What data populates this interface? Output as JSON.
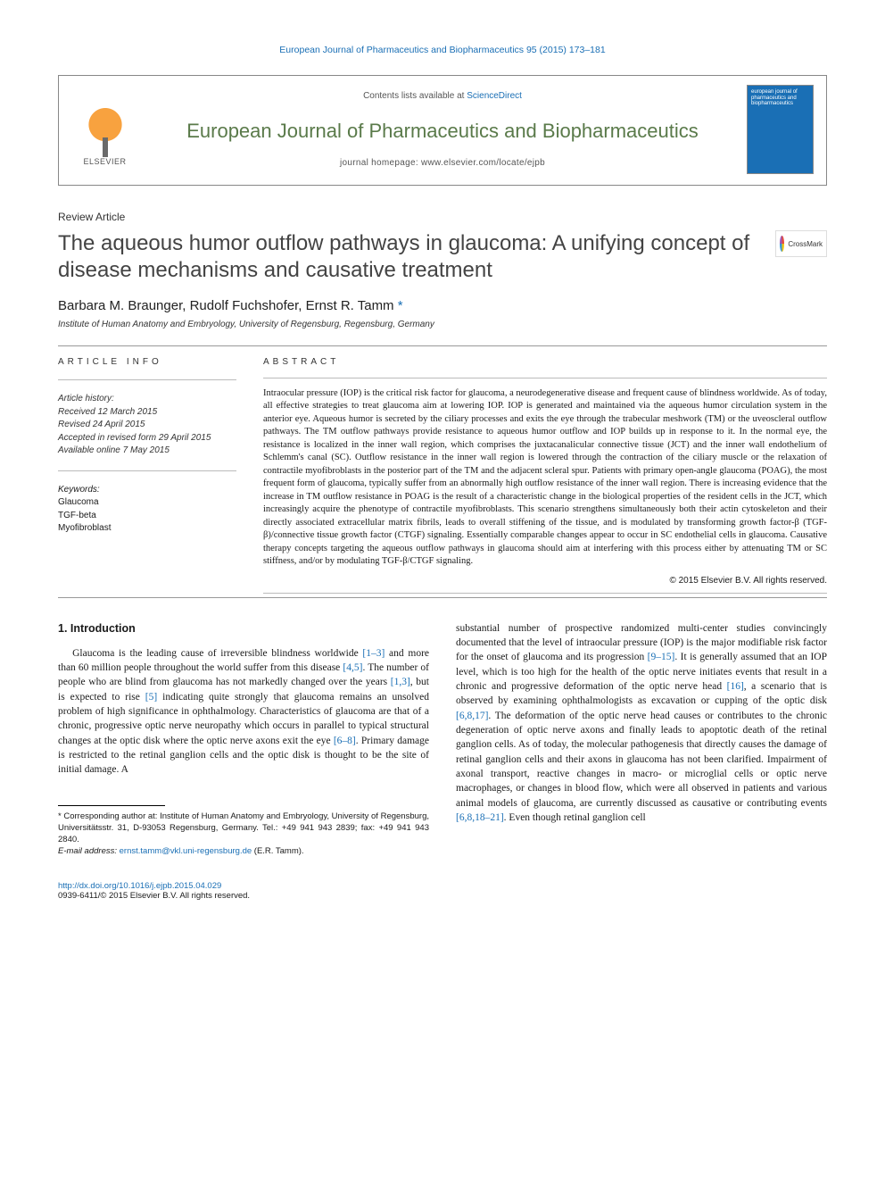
{
  "running_head": "European Journal of Pharmaceutics and Biopharmaceutics 95 (2015) 173–181",
  "masthead": {
    "contents_prefix": "Contents lists available at ",
    "contents_link": "ScienceDirect",
    "journal_name": "European Journal of Pharmaceutics and Biopharmaceutics",
    "homepage_label": "journal homepage: www.elsevier.com/locate/ejpb",
    "publisher_name": "ELSEVIER",
    "cover_text": "european journal of pharmaceutics and biopharmaceutics"
  },
  "article_type": "Review Article",
  "title": "The aqueous humor outflow pathways in glaucoma: A unifying concept of disease mechanisms and causative treatment",
  "crossmark_label": "CrossMark",
  "authors_line": "Barbara M. Braunger, Rudolf Fuchshofer, Ernst R. Tamm ",
  "corr_marker": "*",
  "affiliation": "Institute of Human Anatomy and Embryology, University of Regensburg, Regensburg, Germany",
  "info": {
    "heading": "ARTICLE INFO",
    "history_heading": "Article history:",
    "history": [
      "Received 12 March 2015",
      "Revised 24 April 2015",
      "Accepted in revised form 29 April 2015",
      "Available online 7 May 2015"
    ],
    "keywords_heading": "Keywords:",
    "keywords": [
      "Glaucoma",
      "TGF-beta",
      "Myofibroblast"
    ]
  },
  "abstract": {
    "heading": "ABSTRACT",
    "text": "Intraocular pressure (IOP) is the critical risk factor for glaucoma, a neurodegenerative disease and frequent cause of blindness worldwide. As of today, all effective strategies to treat glaucoma aim at lowering IOP. IOP is generated and maintained via the aqueous humor circulation system in the anterior eye. Aqueous humor is secreted by the ciliary processes and exits the eye through the trabecular meshwork (TM) or the uveoscleral outflow pathways. The TM outflow pathways provide resistance to aqueous humor outflow and IOP builds up in response to it. In the normal eye, the resistance is localized in the inner wall region, which comprises the juxtacanalicular connective tissue (JCT) and the inner wall endothelium of Schlemm's canal (SC). Outflow resistance in the inner wall region is lowered through the contraction of the ciliary muscle or the relaxation of contractile myofibroblasts in the posterior part of the TM and the adjacent scleral spur. Patients with primary open-angle glaucoma (POAG), the most frequent form of glaucoma, typically suffer from an abnormally high outflow resistance of the inner wall region. There is increasing evidence that the increase in TM outflow resistance in POAG is the result of a characteristic change in the biological properties of the resident cells in the JCT, which increasingly acquire the phenotype of contractile myofibroblasts. This scenario strengthens simultaneously both their actin cytoskeleton and their directly associated extracellular matrix fibrils, leads to overall stiffening of the tissue, and is modulated by transforming growth factor-β (TGF-β)/connective tissue growth factor (CTGF) signaling. Essentially comparable changes appear to occur in SC endothelial cells in glaucoma. Causative therapy concepts targeting the aqueous outflow pathways in glaucoma should aim at interfering with this process either by attenuating TM or SC stiffness, and/or by modulating TGF-β/CTGF signaling.",
    "copyright": "© 2015 Elsevier B.V. All rights reserved."
  },
  "body": {
    "section_heading": "1. Introduction",
    "col1_text": "Glaucoma is the leading cause of irreversible blindness worldwide [1–3] and more than 60 million people throughout the world suffer from this disease [4,5]. The number of people who are blind from glaucoma has not markedly changed over the years [1,3], but is expected to rise [5] indicating quite strongly that glaucoma remains an unsolved problem of high significance in ophthalmology. Characteristics of glaucoma are that of a chronic, progressive optic nerve neuropathy which occurs in parallel to typical structural changes at the optic disk where the optic nerve axons exit the eye [6–8]. Primary damage is restricted to the retinal ganglion cells and the optic disk is thought to be the site of initial damage. A",
    "col2_text": "substantial number of prospective randomized multi-center studies convincingly documented that the level of intraocular pressure (IOP) is the major modifiable risk factor for the onset of glaucoma and its progression [9–15]. It is generally assumed that an IOP level, which is too high for the health of the optic nerve initiates events that result in a chronic and progressive deformation of the optic nerve head [16], a scenario that is observed by examining ophthalmologists as excavation or cupping of the optic disk [6,8,17]. The deformation of the optic nerve head causes or contributes to the chronic degeneration of optic nerve axons and finally leads to apoptotic death of the retinal ganglion cells. As of today, the molecular pathogenesis that directly causes the damage of retinal ganglion cells and their axons in glaucoma has not been clarified. Impairment of axonal transport, reactive changes in macro- or microglial cells or optic nerve macrophages, or changes in blood flow, which were all observed in patients and various animal models of glaucoma, are currently discussed as causative or contributing events [6,8,18–21]. Even though retinal ganglion cell"
  },
  "footnote": {
    "corr_text": "* Corresponding author at: Institute of Human Anatomy and Embryology, University of Regensburg, Universitätsstr. 31, D-93053 Regensburg, Germany. Tel.: +49 941 943 2839; fax: +49 941 943 2840.",
    "email_label": "E-mail address: ",
    "email": "ernst.tamm@vkl.uni-regensburg.de",
    "email_suffix": " (E.R. Tamm)."
  },
  "footer": {
    "doi": "http://dx.doi.org/10.1016/j.ejpb.2015.04.029",
    "issn_line": "0939-6411/© 2015 Elsevier B.V. All rights reserved."
  },
  "colors": {
    "link": "#1a6fb5",
    "journal_green": "#5a7a4a",
    "text": "#1a1a1a",
    "rule": "#999999"
  }
}
